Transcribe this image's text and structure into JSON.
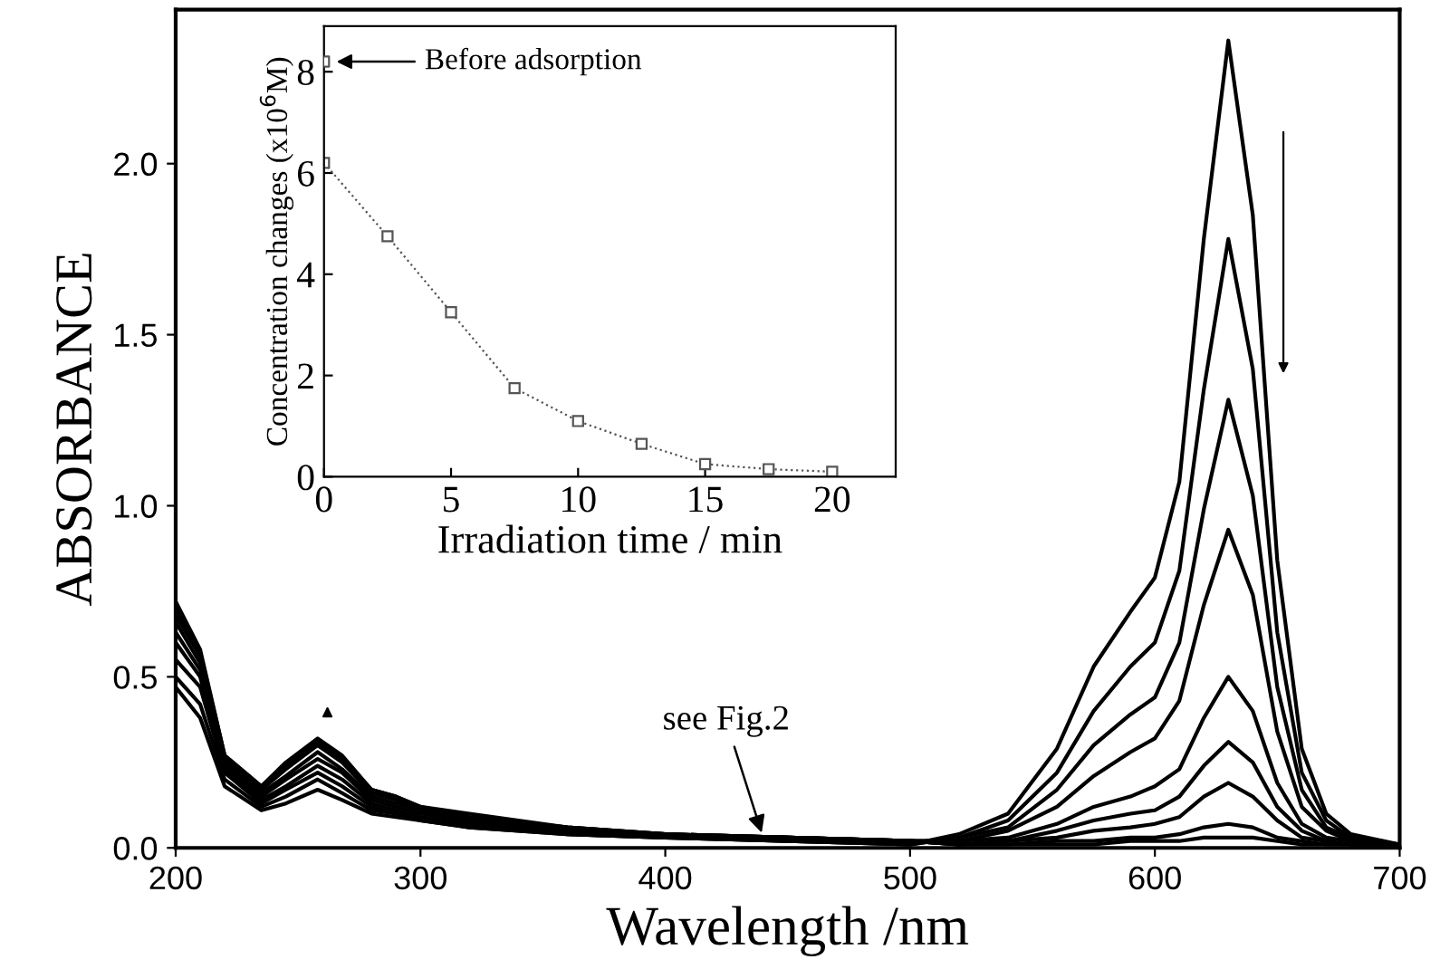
{
  "chart_data": [
    {
      "type": "line",
      "xlabel": "Wavelength /nm",
      "ylabel": "ABSORBANCE",
      "xlim": [
        200,
        700
      ],
      "ylim": [
        0,
        2.45
      ],
      "xticks": [
        200,
        300,
        400,
        500,
        600,
        700
      ],
      "yticks": [
        {
          "value": 0,
          "label": "0.0"
        },
        {
          "value": 0.5,
          "label": "0.5"
        },
        {
          "value": 1,
          "label": "1.0"
        },
        {
          "value": 1.5,
          "label": "1.5"
        },
        {
          "value": 2,
          "label": "2.0"
        }
      ],
      "marker": "none",
      "line_style": "solid",
      "annotations": [
        {
          "text": "see Fig.2",
          "x": 440,
          "y": 0.03
        }
      ],
      "x": [
        200,
        210,
        220,
        235,
        245,
        258,
        268,
        280,
        290,
        300,
        320,
        360,
        400,
        450,
        500,
        520,
        540,
        560,
        575,
        590,
        600,
        610,
        620,
        630,
        640,
        650,
        660,
        670,
        680,
        700
      ],
      "series": [
        {
          "color": "#000000",
          "values": [
            0.47,
            0.38,
            0.18,
            0.11,
            0.13,
            0.17,
            0.14,
            0.1,
            0.09,
            0.08,
            0.06,
            0.04,
            0.03,
            0.02,
            0.01,
            0.04,
            0.1,
            0.29,
            0.53,
            0.69,
            0.79,
            1.07,
            1.78,
            2.36,
            1.85,
            0.84,
            0.29,
            0.1,
            0.04,
            0.01
          ]
        },
        {
          "color": "#000000",
          "values": [
            0.5,
            0.42,
            0.2,
            0.12,
            0.15,
            0.2,
            0.16,
            0.11,
            0.1,
            0.08,
            0.06,
            0.04,
            0.03,
            0.02,
            0.01,
            0.03,
            0.08,
            0.22,
            0.4,
            0.53,
            0.6,
            0.81,
            1.34,
            1.78,
            1.4,
            0.63,
            0.22,
            0.08,
            0.03,
            0.01
          ]
        },
        {
          "color": "#000000",
          "values": [
            0.55,
            0.47,
            0.22,
            0.13,
            0.17,
            0.22,
            0.18,
            0.12,
            0.1,
            0.09,
            0.07,
            0.04,
            0.03,
            0.02,
            0.01,
            0.03,
            0.06,
            0.17,
            0.3,
            0.39,
            0.44,
            0.6,
            0.99,
            1.31,
            1.03,
            0.47,
            0.17,
            0.06,
            0.03,
            0.01
          ]
        },
        {
          "color": "#000000",
          "values": [
            0.6,
            0.5,
            0.23,
            0.14,
            0.18,
            0.24,
            0.2,
            0.13,
            0.11,
            0.09,
            0.07,
            0.05,
            0.03,
            0.03,
            0.02,
            0.02,
            0.05,
            0.12,
            0.21,
            0.28,
            0.32,
            0.43,
            0.71,
            0.93,
            0.74,
            0.34,
            0.12,
            0.05,
            0.02,
            0.01
          ]
        },
        {
          "color": "#000000",
          "values": [
            0.63,
            0.52,
            0.24,
            0.15,
            0.2,
            0.26,
            0.22,
            0.14,
            0.12,
            0.1,
            0.08,
            0.05,
            0.04,
            0.03,
            0.02,
            0.02,
            0.03,
            0.07,
            0.12,
            0.15,
            0.18,
            0.23,
            0.38,
            0.5,
            0.4,
            0.19,
            0.07,
            0.03,
            0.02,
            0.01
          ]
        },
        {
          "color": "#000000",
          "values": [
            0.66,
            0.54,
            0.25,
            0.16,
            0.21,
            0.28,
            0.23,
            0.15,
            0.13,
            0.11,
            0.08,
            0.05,
            0.04,
            0.03,
            0.02,
            0.01,
            0.02,
            0.05,
            0.08,
            0.1,
            0.11,
            0.15,
            0.24,
            0.31,
            0.25,
            0.12,
            0.05,
            0.02,
            0.01,
            0.01
          ]
        },
        {
          "color": "#000000",
          "values": [
            0.68,
            0.56,
            0.26,
            0.17,
            0.23,
            0.3,
            0.25,
            0.16,
            0.14,
            0.11,
            0.09,
            0.06,
            0.04,
            0.03,
            0.02,
            0.01,
            0.02,
            0.03,
            0.05,
            0.06,
            0.07,
            0.09,
            0.15,
            0.19,
            0.15,
            0.08,
            0.03,
            0.02,
            0.01,
            0.01
          ]
        },
        {
          "color": "#000000",
          "values": [
            0.7,
            0.57,
            0.27,
            0.18,
            0.24,
            0.31,
            0.26,
            0.17,
            0.15,
            0.12,
            0.09,
            0.06,
            0.04,
            0.03,
            0.02,
            0.01,
            0.01,
            0.02,
            0.02,
            0.03,
            0.03,
            0.04,
            0.06,
            0.07,
            0.06,
            0.03,
            0.02,
            0.01,
            0.01,
            0.01
          ]
        },
        {
          "color": "#000000",
          "values": [
            0.72,
            0.58,
            0.27,
            0.18,
            0.25,
            0.32,
            0.27,
            0.17,
            0.15,
            0.12,
            0.1,
            0.06,
            0.04,
            0.03,
            0.02,
            0.01,
            0.01,
            0.01,
            0.01,
            0.02,
            0.02,
            0.02,
            0.03,
            0.03,
            0.03,
            0.02,
            0.01,
            0.01,
            0.01,
            0.01
          ]
        }
      ]
    },
    {
      "type": "line",
      "xlabel": "Irradiation time / min",
      "ylabel": "Concentration changes (x10$^{6}$M)",
      "xlim": [
        0,
        22.5
      ],
      "ylim": [
        0,
        8.9
      ],
      "xticks": [
        0,
        5,
        10,
        15,
        20
      ],
      "yticks": [
        0,
        2,
        4,
        6,
        8
      ],
      "marker": "square",
      "line_style": "dotted",
      "annotations": [
        {
          "text": "Before adsorption",
          "x": 0,
          "y": 8.2
        }
      ],
      "series": [
        {
          "color": "#555555",
          "x": [
            0,
            2.5,
            5,
            7.5,
            10,
            12.5,
            15,
            17.5,
            20
          ],
          "values": [
            6.2,
            4.75,
            3.25,
            1.75,
            1.1,
            0.65,
            0.25,
            0.15,
            0.1
          ]
        },
        {
          "type": "scatter",
          "color": "#555555",
          "x": [
            0
          ],
          "values": [
            8.2
          ]
        }
      ]
    }
  ]
}
